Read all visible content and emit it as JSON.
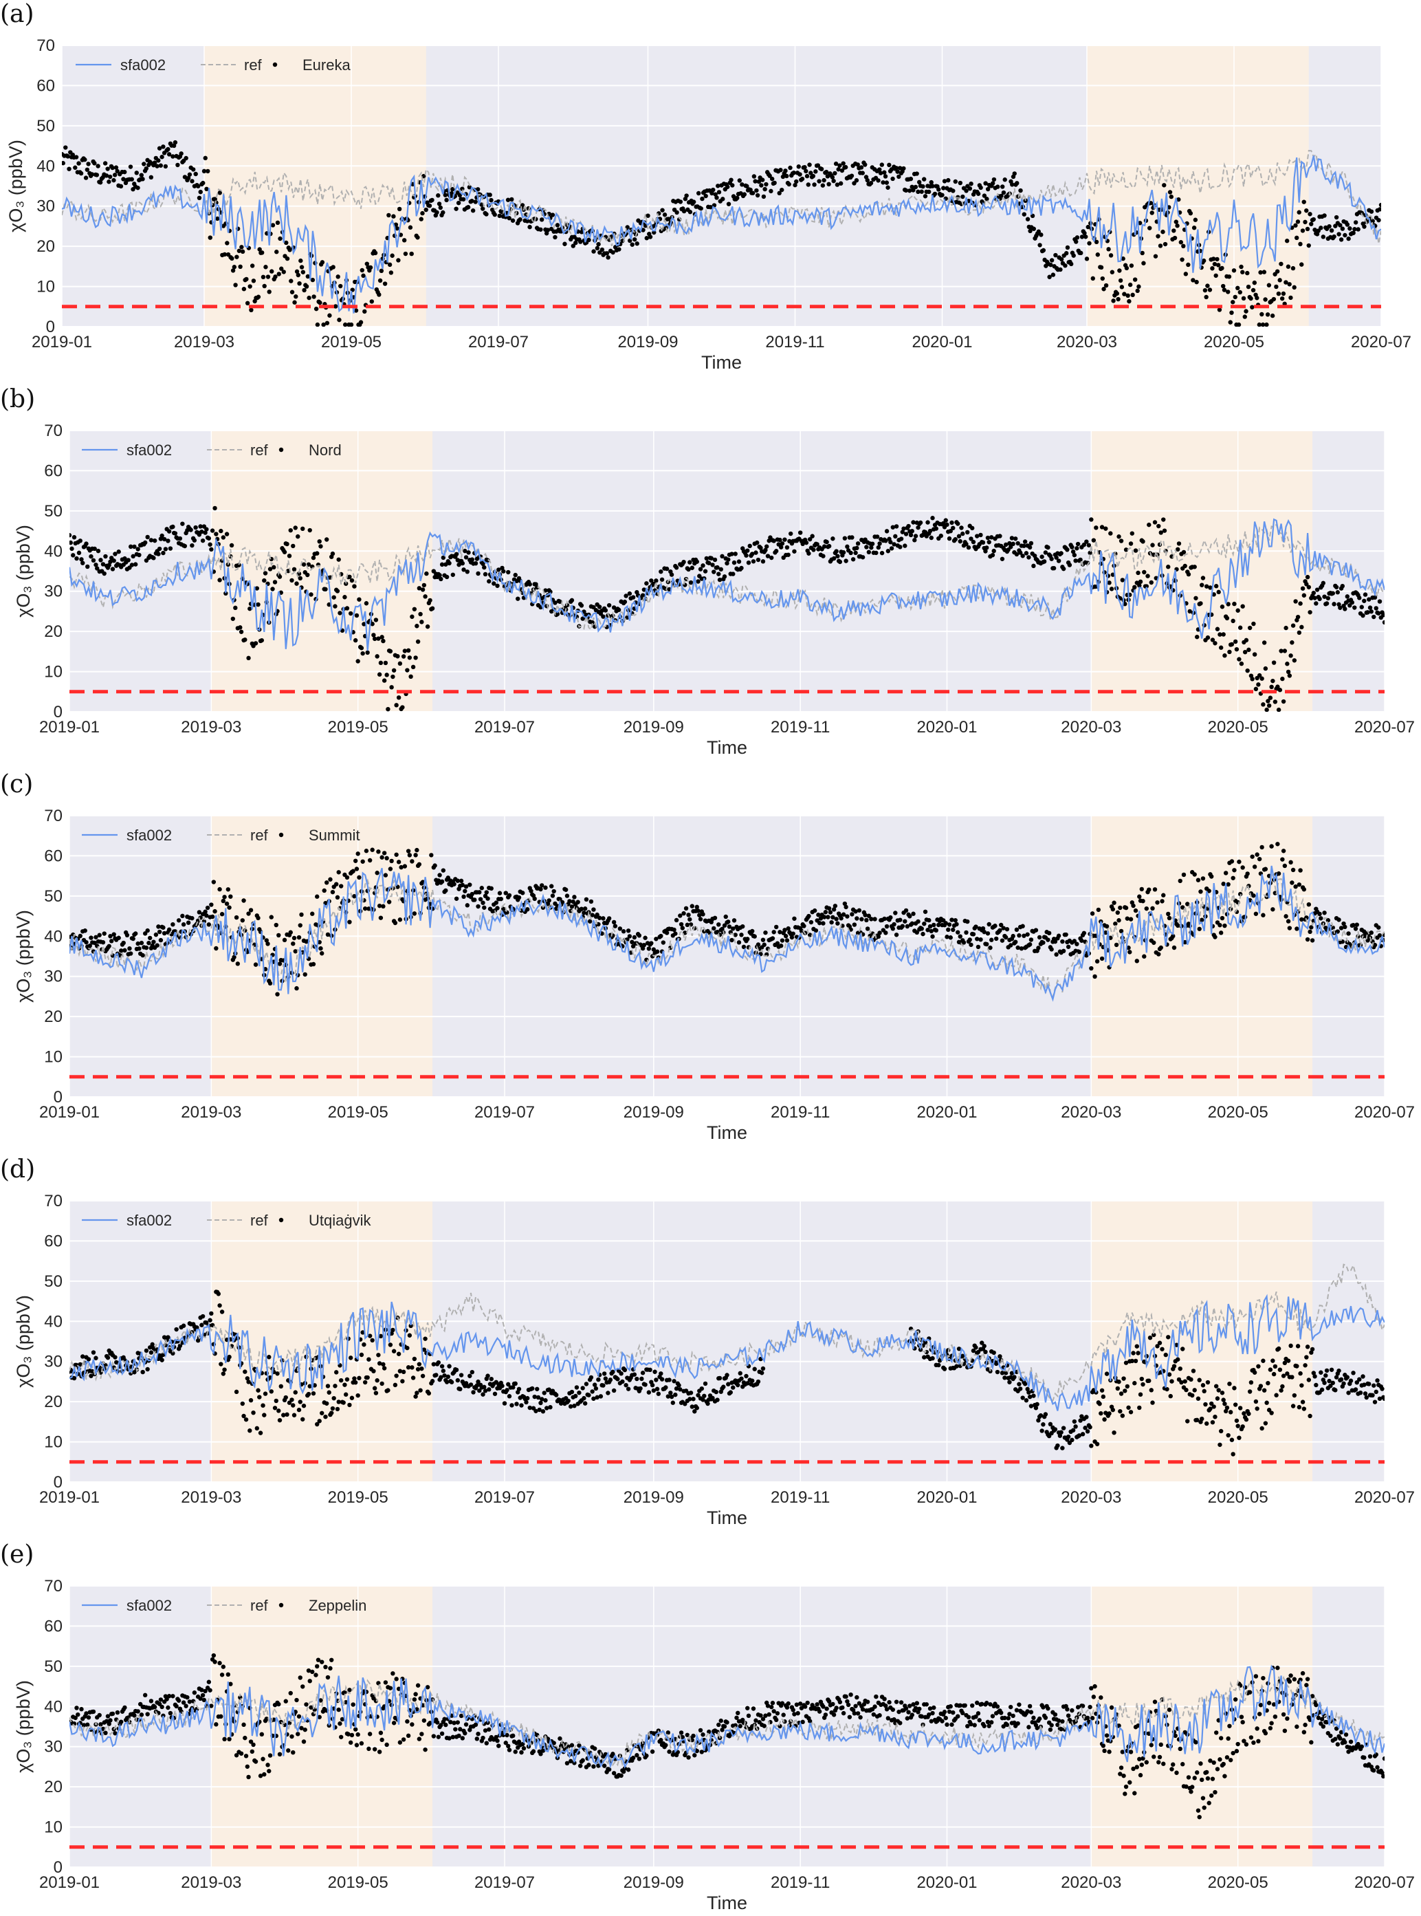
{
  "colors": {
    "background": "#eaeaf2",
    "spring_shade": "#faefe3",
    "sfa002": "#6495ed",
    "ref": "#b0b0b0",
    "obs": "#000000",
    "threshold": "#ff2b2b",
    "grid": "#ffffff"
  },
  "chart_data": [
    {
      "panel_label": "(a)",
      "type": "line",
      "station": "Eureka",
      "xlabel": "Time",
      "ylabel": "χO₃ (ppbV)",
      "xlim": [
        "2019-01-01",
        "2020-07-01"
      ],
      "ylim": [
        0,
        70
      ],
      "xticks": [
        "2019-01",
        "2019-03",
        "2019-05",
        "2019-07",
        "2019-09",
        "2019-11",
        "2020-01",
        "2020-03",
        "2020-05",
        "2020-07"
      ],
      "yticks": [
        "0",
        "10",
        "20",
        "30",
        "40",
        "50",
        "60",
        "70"
      ],
      "shaded_periods": [
        [
          "2019-03-01",
          "2019-06-01"
        ],
        [
          "2020-03-01",
          "2020-06-01"
        ]
      ],
      "threshold": 5,
      "grid": true,
      "legend_position": "top-left",
      "legend": [
        "sfa002",
        "ref",
        "Eureka"
      ],
      "sample_spacing": "semi-monthly from 2019-01-01",
      "series": [
        {
          "name": "sfa002",
          "style": "solid",
          "values": [
            30,
            27,
            29,
            33,
            28,
            25,
            28,
            15,
            6,
            25,
            35,
            33,
            30,
            28,
            24,
            22,
            26,
            25,
            28,
            27,
            28,
            27,
            29,
            30,
            31,
            30,
            30,
            30,
            28,
            22,
            30,
            18,
            25,
            20,
            42,
            35,
            22
          ]
        },
        {
          "name": "ref",
          "style": "dashed",
          "values": [
            30,
            27,
            29,
            33,
            30,
            36,
            36,
            33,
            32,
            33,
            37,
            35,
            30,
            28,
            24,
            22,
            26,
            25,
            28,
            27,
            28,
            27,
            29,
            30,
            31,
            30,
            32,
            33,
            36,
            37,
            38,
            36,
            38,
            37,
            42,
            36,
            22
          ]
        },
        {
          "name": "Eureka",
          "style": "points",
          "values": [
            42,
            38,
            37,
            44,
            32,
            12,
            18,
            8,
            3,
            22,
            30,
            32,
            30,
            27,
            22,
            20,
            25,
            30,
            33,
            35,
            37,
            38,
            38,
            37,
            34,
            33,
            36,
            14,
            22,
            12,
            28,
            18,
            8,
            5,
            26,
            24,
            28
          ]
        }
      ]
    },
    {
      "panel_label": "(b)",
      "type": "line",
      "station": "Nord",
      "xlabel": "Time",
      "ylabel": "χO₃ (ppbV)",
      "xlim": [
        "2019-01-01",
        "2020-07-01"
      ],
      "ylim": [
        0,
        70
      ],
      "xticks": [
        "2019-01",
        "2019-03",
        "2019-05",
        "2019-07",
        "2019-09",
        "2019-11",
        "2020-01",
        "2020-03",
        "2020-05",
        "2020-07"
      ],
      "yticks": [
        "0",
        "10",
        "20",
        "30",
        "40",
        "50",
        "60",
        "70"
      ],
      "shaded_periods": [
        [
          "2019-03-01",
          "2019-06-01"
        ],
        [
          "2020-03-01",
          "2020-06-01"
        ]
      ],
      "threshold": 5,
      "grid": true,
      "legend_position": "top-left",
      "legend": [
        "sfa002",
        "ref",
        "Nord"
      ],
      "sample_spacing": "semi-monthly from 2019-01-01",
      "series": [
        {
          "name": "sfa002",
          "style": "solid",
          "values": [
            34,
            28,
            30,
            35,
            36,
            28,
            22,
            30,
            20,
            32,
            42,
            40,
            32,
            28,
            23,
            22,
            30,
            32,
            30,
            28,
            28,
            25,
            26,
            28,
            28,
            30,
            28,
            25,
            36,
            30,
            32,
            25,
            38,
            45,
            38,
            35,
            30
          ]
        },
        {
          "name": "ref",
          "style": "dashed",
          "values": [
            34,
            28,
            30,
            35,
            38,
            38,
            36,
            34,
            34,
            36,
            42,
            40,
            32,
            28,
            23,
            22,
            30,
            32,
            30,
            28,
            28,
            25,
            26,
            28,
            28,
            30,
            28,
            25,
            40,
            38,
            40,
            40,
            42,
            45,
            38,
            35,
            30
          ]
        },
        {
          "name": "Nord",
          "style": "points",
          "values": [
            42,
            36,
            40,
            44,
            43,
            20,
            38,
            35,
            20,
            5,
            35,
            38,
            32,
            28,
            24,
            24,
            32,
            35,
            36,
            40,
            42,
            40,
            42,
            44,
            46,
            42,
            40,
            38,
            40,
            35,
            40,
            25,
            20,
            5,
            30,
            28,
            25
          ]
        }
      ]
    },
    {
      "panel_label": "(c)",
      "type": "line",
      "station": "Summit",
      "xlabel": "Time",
      "ylabel": "χO₃ (ppbV)",
      "xlim": [
        "2019-01-01",
        "2020-07-01"
      ],
      "ylim": [
        0,
        70
      ],
      "xticks": [
        "2019-01",
        "2019-03",
        "2019-05",
        "2019-07",
        "2019-09",
        "2019-11",
        "2020-01",
        "2020-03",
        "2020-05",
        "2020-07"
      ],
      "yticks": [
        "0",
        "10",
        "20",
        "30",
        "40",
        "50",
        "60",
        "70"
      ],
      "shaded_periods": [
        [
          "2019-03-01",
          "2019-06-01"
        ],
        [
          "2020-03-01",
          "2020-06-01"
        ]
      ],
      "threshold": 5,
      "grid": true,
      "legend_position": "top-left",
      "legend": [
        "sfa002",
        "ref",
        "Summit"
      ],
      "sample_spacing": "semi-monthly from 2019-01-01",
      "series": [
        {
          "name": "sfa002",
          "style": "solid",
          "values": [
            38,
            34,
            32,
            40,
            42,
            38,
            30,
            42,
            50,
            50,
            48,
            42,
            45,
            48,
            44,
            38,
            32,
            40,
            38,
            33,
            38,
            40,
            38,
            35,
            36,
            34,
            32,
            25,
            38,
            40,
            42,
            46,
            48,
            52,
            44,
            38,
            38
          ]
        },
        {
          "name": "ref",
          "style": "dashed",
          "values": [
            39,
            35,
            33,
            41,
            43,
            39,
            31,
            43,
            51,
            51,
            49,
            43,
            46,
            49,
            45,
            39,
            33,
            41,
            39,
            34,
            39,
            41,
            39,
            36,
            37,
            35,
            33,
            26,
            39,
            41,
            43,
            47,
            49,
            53,
            45,
            39,
            39
          ]
        },
        {
          "name": "Summit",
          "style": "points",
          "values": [
            40,
            38,
            38,
            42,
            45,
            40,
            32,
            45,
            55,
            52,
            55,
            50,
            48,
            50,
            48,
            40,
            36,
            45,
            42,
            38,
            42,
            46,
            42,
            44,
            42,
            40,
            40,
            38,
            38,
            42,
            45,
            48,
            50,
            55,
            45,
            40,
            40
          ]
        }
      ]
    },
    {
      "panel_label": "(d)",
      "type": "line",
      "station": "Utqiaġvik",
      "xlabel": "Time",
      "ylabel": "χO₃ (ppbV)",
      "xlim": [
        "2019-01-01",
        "2020-07-01"
      ],
      "ylim": [
        0,
        70
      ],
      "xticks": [
        "2019-01",
        "2019-03",
        "2019-05",
        "2019-07",
        "2019-09",
        "2019-11",
        "2020-01",
        "2020-03",
        "2020-05",
        "2020-07"
      ],
      "yticks": [
        "0",
        "10",
        "20",
        "30",
        "40",
        "50",
        "60",
        "70"
      ],
      "shaded_periods": [
        [
          "2019-03-01",
          "2019-06-01"
        ],
        [
          "2020-03-01",
          "2020-06-01"
        ]
      ],
      "threshold": 5,
      "grid": true,
      "legend_position": "top-left",
      "legend": [
        "sfa002",
        "ref",
        "Utqiaġvik"
      ],
      "sample_spacing": "semi-monthly from 2019-01-01",
      "series": [
        {
          "name": "sfa002",
          "style": "solid",
          "values": [
            28,
            28,
            30,
            35,
            38,
            30,
            28,
            30,
            38,
            38,
            32,
            35,
            33,
            30,
            28,
            30,
            30,
            28,
            30,
            32,
            38,
            36,
            33,
            36,
            32,
            30,
            28,
            20,
            22,
            38,
            30,
            38,
            38,
            40,
            38,
            42,
            40
          ]
        },
        {
          "name": "ref",
          "style": "dashed",
          "values": [
            28,
            28,
            30,
            35,
            38,
            30,
            30,
            32,
            42,
            40,
            38,
            45,
            38,
            35,
            32,
            32,
            32,
            30,
            30,
            33,
            38,
            36,
            33,
            36,
            32,
            30,
            28,
            22,
            30,
            40,
            38,
            42,
            40,
            45,
            38,
            55,
            38
          ]
        },
        {
          "name": "Utqiaġvik",
          "style": "points",
          "values": [
            28,
            30,
            30,
            36,
            40,
            20,
            25,
            22,
            30,
            32,
            28,
            25,
            22,
            20,
            22,
            26,
            25,
            20,
            24,
            28,
            null,
            null,
            null,
            36,
            30,
            32,
            25,
            10,
            15,
            25,
            30,
            20,
            15,
            25,
            25,
            25,
            22
          ]
        }
      ]
    },
    {
      "panel_label": "(e)",
      "type": "line",
      "station": "Zeppelin",
      "xlabel": "Time",
      "ylabel": "χO₃ (ppbV)",
      "xlim": [
        "2019-01-01",
        "2020-07-01"
      ],
      "ylim": [
        0,
        70
      ],
      "xticks": [
        "2019-01",
        "2019-03",
        "2019-05",
        "2019-07",
        "2019-09",
        "2019-11",
        "2020-01",
        "2020-03",
        "2020-05",
        "2020-07"
      ],
      "yticks": [
        "0",
        "10",
        "20",
        "30",
        "40",
        "50",
        "60",
        "70"
      ],
      "shaded_periods": [
        [
          "2019-03-01",
          "2019-06-01"
        ],
        [
          "2020-03-01",
          "2020-06-01"
        ]
      ],
      "threshold": 5,
      "grid": true,
      "legend_position": "top-left",
      "legend": [
        "sfa002",
        "ref",
        "Zeppelin"
      ],
      "sample_spacing": "semi-monthly from 2019-01-01",
      "series": [
        {
          "name": "sfa002",
          "style": "solid",
          "values": [
            34,
            32,
            35,
            36,
            40,
            38,
            32,
            40,
            42,
            40,
            40,
            38,
            34,
            30,
            28,
            26,
            32,
            30,
            32,
            34,
            34,
            33,
            34,
            32,
            32,
            30,
            32,
            32,
            35,
            33,
            35,
            35,
            42,
            45,
            40,
            34,
            30
          ]
        },
        {
          "name": "ref",
          "style": "dashed",
          "values": [
            35,
            33,
            36,
            37,
            41,
            40,
            35,
            42,
            44,
            42,
            41,
            39,
            35,
            31,
            29,
            27,
            33,
            31,
            33,
            35,
            35,
            34,
            35,
            33,
            33,
            31,
            33,
            33,
            39,
            38,
            40,
            40,
            44,
            46,
            41,
            35,
            31
          ]
        },
        {
          "name": "Zeppelin",
          "style": "points",
          "values": [
            38,
            35,
            40,
            40,
            44,
            30,
            35,
            45,
            35,
            40,
            35,
            35,
            32,
            30,
            28,
            25,
            32,
            30,
            35,
            38,
            38,
            40,
            40,
            38,
            38,
            38,
            38,
            37,
            38,
            25,
            35,
            20,
            38,
            42,
            40,
            30,
            25
          ]
        }
      ]
    }
  ]
}
